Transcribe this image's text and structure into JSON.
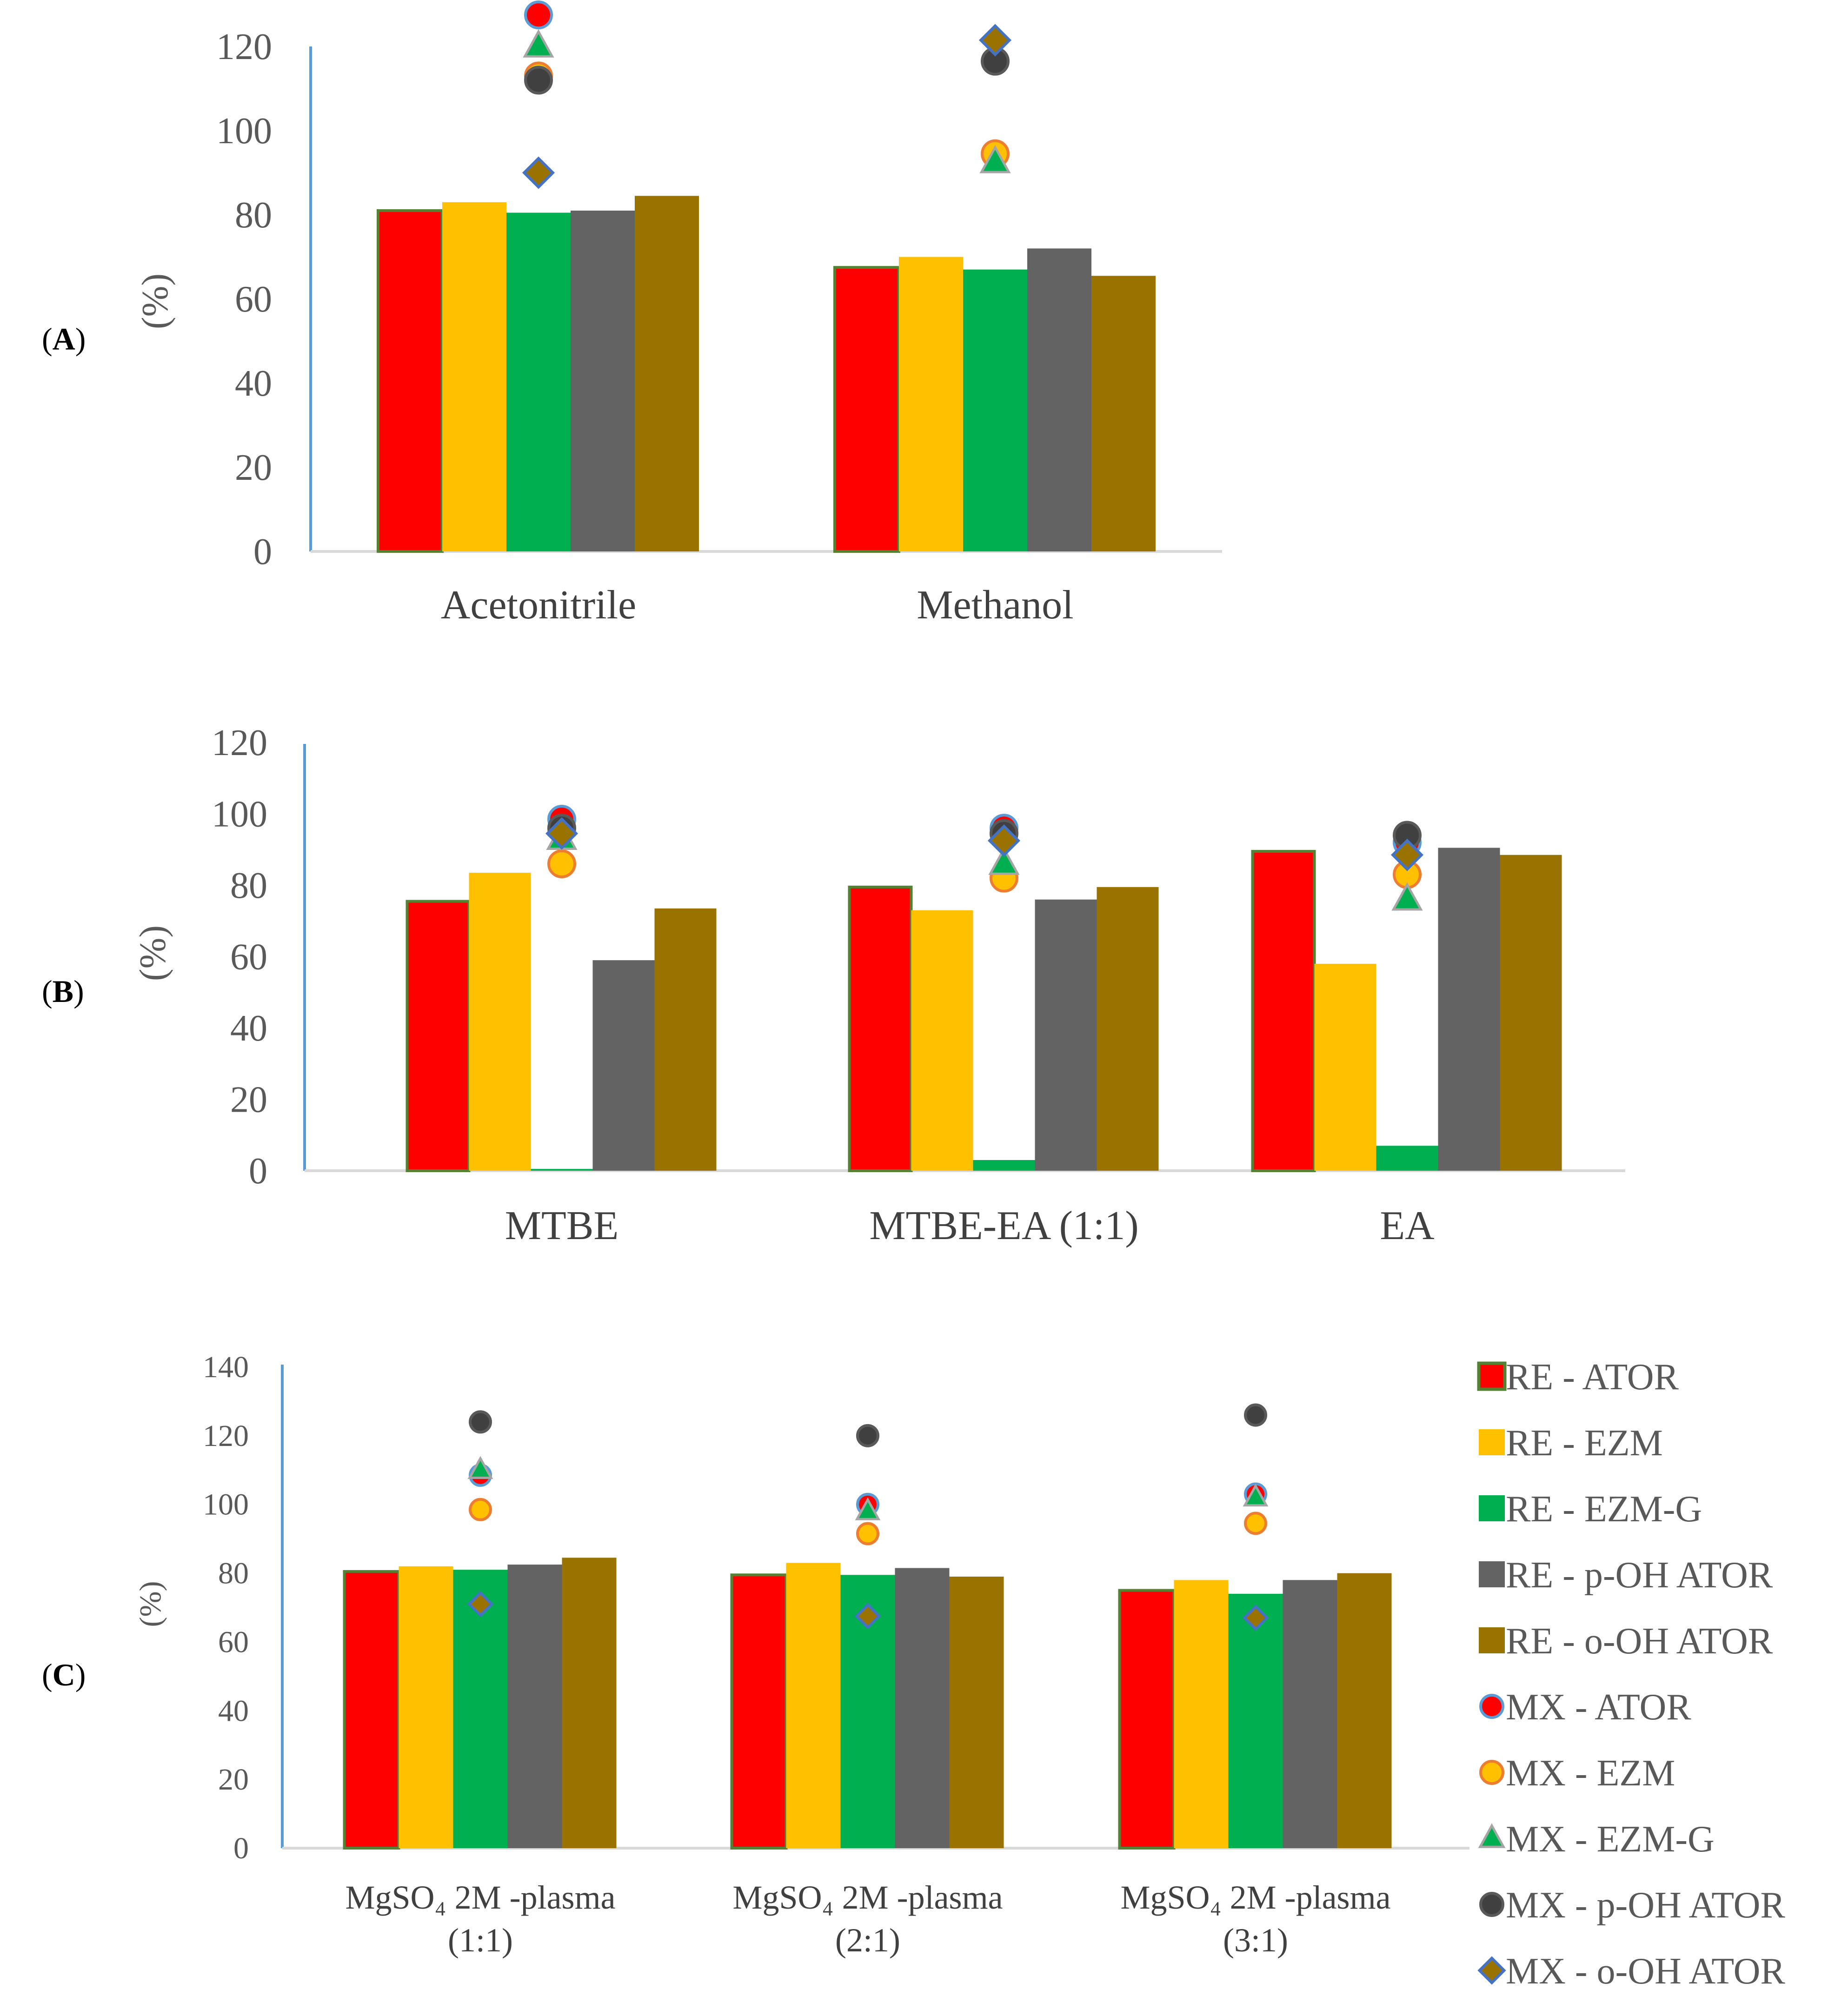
{
  "chart_data": [
    {
      "panel": "A",
      "type": "bar",
      "ylabel": "(%)",
      "ylim": [
        0,
        120
      ],
      "yticks": [
        0,
        20,
        40,
        60,
        80,
        100,
        120
      ],
      "categories": [
        "Acetonitrile",
        "Methanol"
      ],
      "bar_series": [
        {
          "name": "RE - ATOR",
          "values": [
            81,
            67.5
          ]
        },
        {
          "name": "RE - EZM",
          "values": [
            83,
            70
          ]
        },
        {
          "name": "RE - EZM-G",
          "values": [
            80.5,
            67
          ]
        },
        {
          "name": "RE - p-OH ATOR",
          "values": [
            81,
            72
          ]
        },
        {
          "name": "RE - o-OH ATOR",
          "values": [
            84.5,
            65.5
          ]
        }
      ],
      "marker_series": [
        {
          "name": "MX - ATOR",
          "values": [
            127.5,
            null
          ]
        },
        {
          "name": "MX - EZM",
          "values": [
            113,
            94.5
          ]
        },
        {
          "name": "MX - EZM-G",
          "values": [
            120,
            92.5
          ]
        },
        {
          "name": "MX - p-OH ATOR",
          "values": [
            112,
            116.5
          ]
        },
        {
          "name": "MX - o-OH ATOR",
          "values": [
            90,
            121.5
          ]
        }
      ]
    },
    {
      "panel": "B",
      "type": "bar",
      "ylabel": "(%)",
      "ylim": [
        0,
        120
      ],
      "yticks": [
        0,
        20,
        40,
        60,
        80,
        100,
        120
      ],
      "categories": [
        "MTBE",
        "MTBE-EA (1:1)",
        "EA"
      ],
      "bar_series": [
        {
          "name": "RE - ATOR",
          "values": [
            75.5,
            79.5,
            89.5
          ]
        },
        {
          "name": "RE - EZM",
          "values": [
            83.5,
            73,
            58
          ]
        },
        {
          "name": "RE - EZM-G",
          "values": [
            0.5,
            3,
            7
          ]
        },
        {
          "name": "RE - p-OH ATOR",
          "values": [
            59,
            76,
            90.5
          ]
        },
        {
          "name": "RE - o-OH ATOR",
          "values": [
            73.5,
            79.5,
            88.5
          ]
        }
      ],
      "marker_series": [
        {
          "name": "MX - ATOR",
          "values": [
            98.5,
            96,
            92
          ]
        },
        {
          "name": "MX - EZM",
          "values": [
            86,
            82,
            83
          ]
        },
        {
          "name": "MX - EZM-G",
          "values": [
            93,
            86,
            76
          ]
        },
        {
          "name": "MX - p-OH ATOR",
          "values": [
            96,
            94.5,
            94
          ]
        },
        {
          "name": "MX - o-OH ATOR",
          "values": [
            94.5,
            92.5,
            88.5
          ]
        }
      ]
    },
    {
      "panel": "C",
      "type": "bar",
      "ylabel": "(%)",
      "ylim": [
        0,
        140
      ],
      "yticks": [
        0,
        20,
        40,
        60,
        80,
        100,
        120,
        140
      ],
      "categories": [
        {
          "line1": "MgSO₄ 2M -plasma",
          "line2": "(1:1)"
        },
        {
          "line1": "MgSO₄ 2M -plasma",
          "line2": "(2:1)"
        },
        {
          "line1": "MgSO₄ 2M -plasma",
          "line2": "(3:1)"
        }
      ],
      "bar_series": [
        {
          "name": "RE - ATOR",
          "values": [
            80.5,
            79.5,
            75
          ]
        },
        {
          "name": "RE - EZM",
          "values": [
            82,
            83,
            78
          ]
        },
        {
          "name": "RE - EZM-G",
          "values": [
            81,
            79.5,
            74
          ]
        },
        {
          "name": "RE - p-OH ATOR",
          "values": [
            82.5,
            81.5,
            78
          ]
        },
        {
          "name": "RE - o-OH ATOR",
          "values": [
            84.5,
            79,
            80
          ]
        }
      ],
      "marker_series": [
        {
          "name": "MX - ATOR",
          "values": [
            108.5,
            100,
            103
          ]
        },
        {
          "name": "MX - EZM",
          "values": [
            98.5,
            91.5,
            94.5
          ]
        },
        {
          "name": "MX - EZM-G",
          "values": [
            110,
            98,
            102
          ]
        },
        {
          "name": "MX - p-OH ATOR",
          "values": [
            124,
            120,
            126
          ]
        },
        {
          "name": "MX - o-OH ATOR",
          "values": [
            71,
            67.5,
            67
          ]
        }
      ]
    }
  ],
  "panel_labels": [
    "A",
    "B",
    "C"
  ],
  "legend": {
    "position": "right of panel C",
    "items": [
      {
        "label": "RE - ATOR",
        "kind": "bar-square",
        "fill": "#ff0000",
        "stroke": "#548235"
      },
      {
        "label": "RE - EZM",
        "kind": "bar-square",
        "fill": "#ffc000",
        "stroke": "#ffc000"
      },
      {
        "label": "RE - EZM-G",
        "kind": "bar-square",
        "fill": "#00b050",
        "stroke": "#00b050"
      },
      {
        "label": "RE - p-OH ATOR",
        "kind": "bar-square",
        "fill": "#636363",
        "stroke": "#636363"
      },
      {
        "label": "RE - o-OH ATOR",
        "kind": "bar-square",
        "fill": "#9a7200",
        "stroke": "#9a7200"
      },
      {
        "label": "MX - ATOR",
        "kind": "circle",
        "fill": "#ff0000",
        "stroke": "#5b9bd5"
      },
      {
        "label": "MX - EZM",
        "kind": "circle",
        "fill": "#ffc000",
        "stroke": "#ed7d31"
      },
      {
        "label": "MX - EZM-G",
        "kind": "triangle",
        "fill": "#00b050",
        "stroke": "#a5a5a5"
      },
      {
        "label": "MX - p-OH ATOR",
        "kind": "circle",
        "fill": "#404040",
        "stroke": "#595959"
      },
      {
        "label": "MX - o-OH ATOR",
        "kind": "diamond",
        "fill": "#9a7200",
        "stroke": "#4472c4"
      }
    ]
  },
  "colors": {
    "axis_y": "#5b9bd5",
    "axis_x": "#d9d9d9",
    "bar_ATOR": "#ff0000",
    "bar_ATOR_border": "#548235",
    "bar_EZM": "#ffc000",
    "bar_EZMG": "#00b050",
    "bar_pOH": "#636363",
    "bar_oOH": "#9a7200"
  }
}
